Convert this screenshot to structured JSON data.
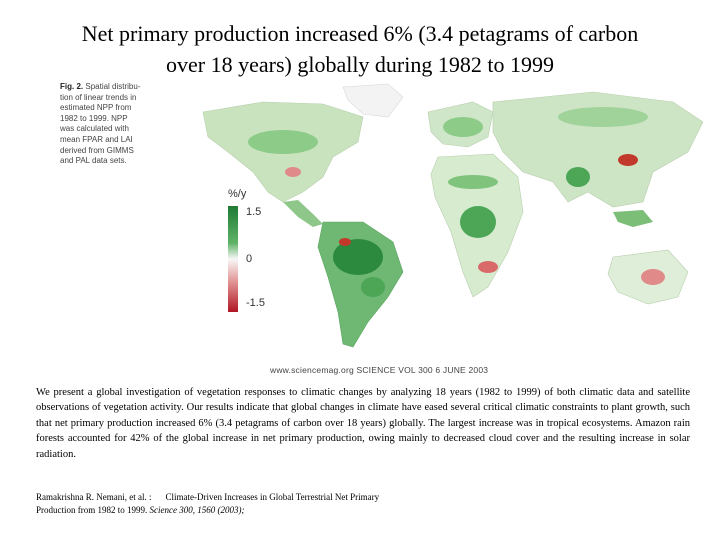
{
  "slide": {
    "title_line1": "Net primary production increased 6% (3.4 petagrams of carbon",
    "title_line2": "over 18 years) globally during 1982 to 1999"
  },
  "figure": {
    "caption_label": "Fig. 2.",
    "caption_lines": [
      "Spatial distribu-",
      "tion of linear trends in",
      "estimated NPP from",
      "1982 to 1999. NPP",
      "was calculated with",
      "mean FPAR and LAI",
      "derived from GIMMS",
      "and PAL data sets."
    ],
    "legend_unit": "%/y",
    "legend_max": "1.5",
    "legend_mid": "0",
    "legend_min": "-1.5",
    "footer": "www.sciencemag.org    SCIENCE    VOL 300    6 JUNE 2003"
  },
  "abstract": "We present a global investigation of vegetation responses to climatic changes by analyzing 18 years (1982 to 1999) of both climatic data and satellite observations of vegetation activity. Our results indicate that global changes in climate have eased several critical climatic constraints to plant growth, such that net primary production increased 6% (3.4 petagrams of carbon over 18 years) globally. The largest increase was in tropical ecosystems. Amazon rain forests accounted for 42% of the global increase in net primary production, owing mainly to decreased cloud cover and the resulting increase in solar radiation.",
  "citation": {
    "authors": "Ramakrishna R. Nemani, et al. :",
    "title_part1": "Climate-Driven Increases in Global Terrestrial Net Primary",
    "title_part2": "Production from 1982 to 1999.",
    "journal": "Science 300, 1560 (2003);"
  }
}
